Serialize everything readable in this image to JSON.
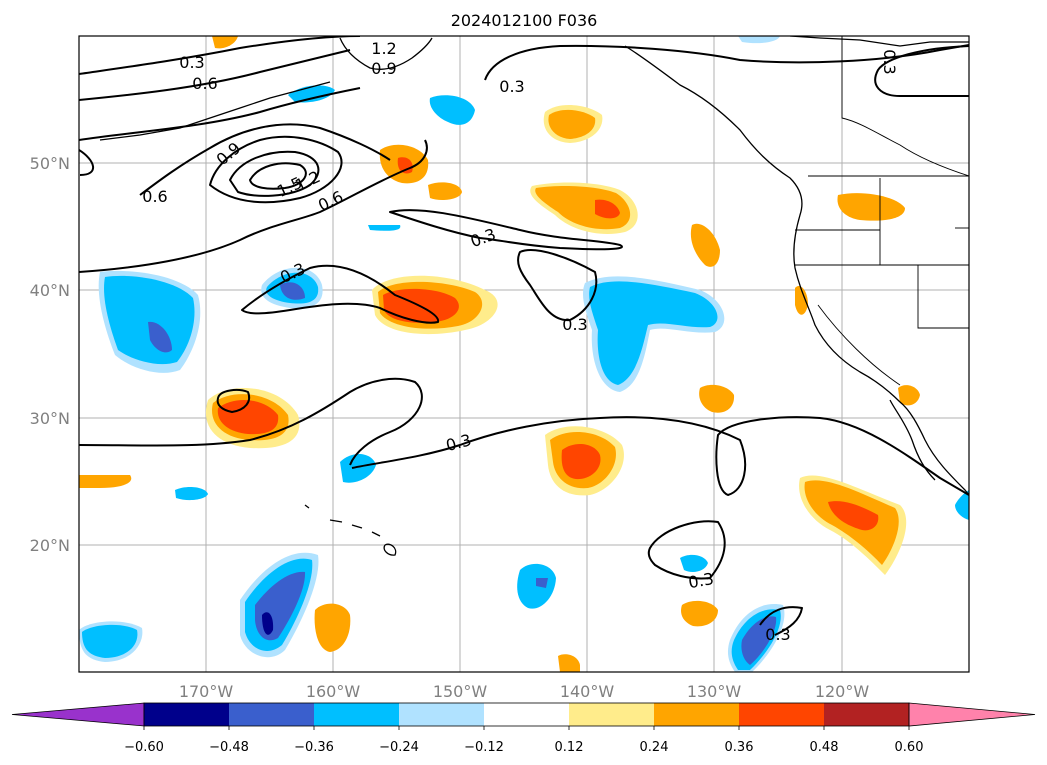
{
  "title": "2024012100 F036",
  "lon_labels": [
    "170°W",
    "160°W",
    "150°W",
    "140°W",
    "130°W",
    "120°W"
  ],
  "lat_labels": [
    "50°N",
    "40°N",
    "30°N",
    "20°N"
  ],
  "colorbar": {
    "ticks": [
      "−0.60",
      "−0.48",
      "−0.36",
      "−0.24",
      "−0.12",
      "0.12",
      "0.24",
      "0.36",
      "0.48",
      "0.60"
    ],
    "colors": [
      "#9932cc",
      "#00008b",
      "#3a5fcd",
      "#00bfff",
      "#b0e2ff",
      "#ffffff",
      "#ffec8b",
      "#ffa500",
      "#ff4500",
      "#b22222",
      "#ff82ab"
    ]
  },
  "contour_labels": [
    "0.3",
    "0.6",
    "1.2",
    "0.9",
    "0.3",
    "0.3",
    "0.9",
    "0.6",
    "1.5",
    "1.2",
    "0.6",
    "0.3",
    "0.3",
    "0.3",
    "0.3",
    "0.3",
    "0.3",
    "0.3"
  ],
  "map_extent": {
    "lon": [
      -180,
      -110
    ],
    "lat": [
      10,
      60
    ]
  },
  "colors": {
    "shade_light_warm": "#ffec8b",
    "shade_warm": "#ffa500",
    "shade_hot": "#ff4500",
    "shade_light_cool": "#b0e2ff",
    "shade_cool": "#00bfff",
    "shade_cold": "#3a5fcd",
    "shade_coldest": "#00008b"
  }
}
